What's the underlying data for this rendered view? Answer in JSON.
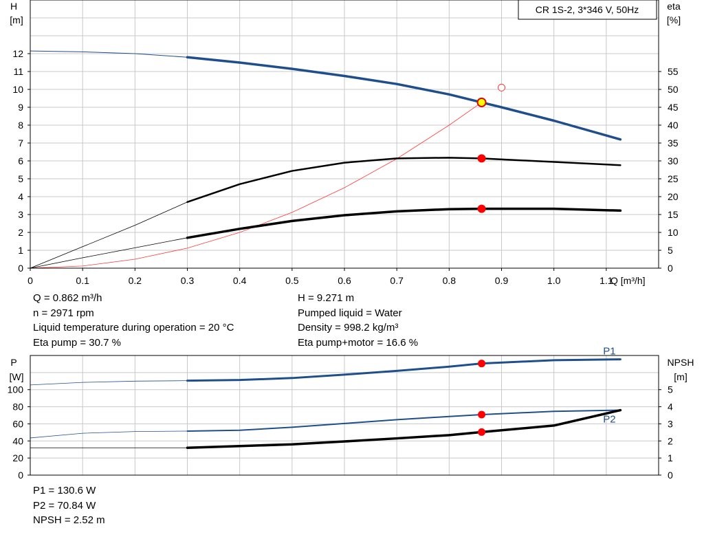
{
  "chart_data": [
    {
      "type": "line",
      "title": "CR 1S-2, 3*346 V, 50Hz",
      "xlabel": "Q [m³/h]",
      "ylabel_left": [
        "H",
        "[m]"
      ],
      "ylabel_right": [
        "eta",
        "[%]"
      ],
      "xlim": [
        0,
        1.2
      ],
      "ylim": [
        0,
        15
      ],
      "y2lim": [
        0,
        75
      ],
      "x_ticks": [
        "0",
        "0.1",
        "0.2",
        "0.3",
        "0.4",
        "0.5",
        "0.6",
        "0.7",
        "0.8",
        "0.9",
        "1.0",
        "1.1"
      ],
      "y_ticks": [
        "0",
        "1",
        "2",
        "3",
        "4",
        "5",
        "6",
        "7",
        "8",
        "9",
        "10",
        "11",
        "12"
      ],
      "y2_ticks": [
        "0",
        "5",
        "10",
        "15",
        "20",
        "25",
        "30",
        "35",
        "40",
        "45",
        "50",
        "55"
      ],
      "grid": true,
      "series": [
        {
          "axis": "left",
          "color": "#1f4e8c",
          "x": [
            0,
            0.1,
            0.2,
            0.3,
            0.4,
            0.5,
            0.6,
            0.7,
            0.8,
            0.862,
            0.9,
            1.0,
            1.127
          ],
          "y": [
            12.15,
            12.1,
            12.0,
            11.8,
            11.5,
            11.15,
            10.75,
            10.3,
            9.72,
            9.271,
            9.0,
            8.25,
            7.2
          ]
        },
        {
          "axis": "right",
          "color": "#000000",
          "x": [
            0,
            0.1,
            0.2,
            0.3,
            0.4,
            0.5,
            0.6,
            0.7,
            0.8,
            0.862,
            1.0,
            1.127
          ],
          "y": [
            0,
            6.0,
            12.0,
            18.5,
            23.5,
            27.2,
            29.5,
            30.7,
            30.9,
            30.7,
            29.7,
            28.8
          ]
        },
        {
          "axis": "right",
          "color": "#000000",
          "x": [
            0,
            0.1,
            0.2,
            0.3,
            0.4,
            0.5,
            0.6,
            0.7,
            0.8,
            0.862,
            1.0,
            1.127
          ],
          "y": [
            0,
            2.9,
            5.7,
            8.5,
            11.0,
            13.2,
            14.8,
            15.9,
            16.5,
            16.6,
            16.6,
            16.1
          ]
        },
        {
          "axis": "left",
          "color": "#ff3a3a",
          "x": [
            0,
            0.1,
            0.2,
            0.3,
            0.4,
            0.5,
            0.6,
            0.7,
            0.8,
            0.862
          ],
          "y": [
            0,
            0.12,
            0.5,
            1.12,
            2.0,
            3.12,
            4.5,
            6.12,
            8.0,
            9.271
          ]
        }
      ],
      "duty_point": {
        "x": 0.862,
        "H": 9.271,
        "eta_pump": 30.7,
        "eta_pump_motor": 16.6
      },
      "reference_point": {
        "x": 0.9,
        "H": 10.1
      }
    },
    {
      "type": "line",
      "xlim": [
        0,
        1.2
      ],
      "ylim": [
        0,
        140
      ],
      "y2lim": [
        0,
        7
      ],
      "ylabel_left": [
        "P",
        "[W]"
      ],
      "ylabel_right": [
        "NPSH",
        "[m]"
      ],
      "y_ticks": [
        "0",
        "20",
        "40",
        "60",
        "80",
        "100"
      ],
      "y2_ticks": [
        "0",
        "1",
        "2",
        "3",
        "4",
        "5"
      ],
      "grid": true,
      "series": [
        {
          "name": "P1",
          "axis": "left",
          "color": "#1f4e8c",
          "x": [
            0,
            0.1,
            0.2,
            0.3,
            0.4,
            0.5,
            0.6,
            0.7,
            0.8,
            0.862,
            1.0,
            1.127
          ],
          "y": [
            105.5,
            108.5,
            110.0,
            110.5,
            111.3,
            113.6,
            117.6,
            122.0,
            126.9,
            130.6,
            134.5,
            135.5
          ]
        },
        {
          "name": "P2",
          "axis": "left",
          "color": "#1f4e8c",
          "x": [
            0,
            0.1,
            0.2,
            0.3,
            0.4,
            0.5,
            0.6,
            0.7,
            0.8,
            0.862,
            1.0,
            1.127
          ],
          "y": [
            43.5,
            49.0,
            51.0,
            51.5,
            52.5,
            56.0,
            60.4,
            64.9,
            68.6,
            70.84,
            74.6,
            76.0
          ]
        },
        {
          "name": "NPSH",
          "axis": "right",
          "color": "#000000",
          "x": [
            0,
            0.1,
            0.2,
            0.3,
            0.4,
            0.5,
            0.6,
            0.7,
            0.8,
            0.862,
            1.0,
            1.127
          ],
          "y": [
            1.6,
            1.6,
            1.6,
            1.6,
            1.7,
            1.8,
            1.97,
            2.15,
            2.34,
            2.52,
            2.9,
            3.8
          ]
        }
      ],
      "duty_point": {
        "x": 0.862,
        "P1": 130.6,
        "P2": 70.84,
        "NPSH": 2.52
      }
    }
  ],
  "info_top_left": [
    "Q = 0.862 m³/h",
    "n = 2971 rpm",
    "Liquid temperature during operation = 20 °C",
    "Eta pump = 30.7 %"
  ],
  "info_top_right": [
    "H = 9.271 m",
    "Pumped liquid = Water",
    "Density = 998.2 kg/m³",
    "Eta pump+motor = 16.6 %"
  ],
  "info_bottom": [
    "P1 = 130.6 W",
    "P2 = 70.84 W",
    "NPSH = 2.52 m"
  ]
}
